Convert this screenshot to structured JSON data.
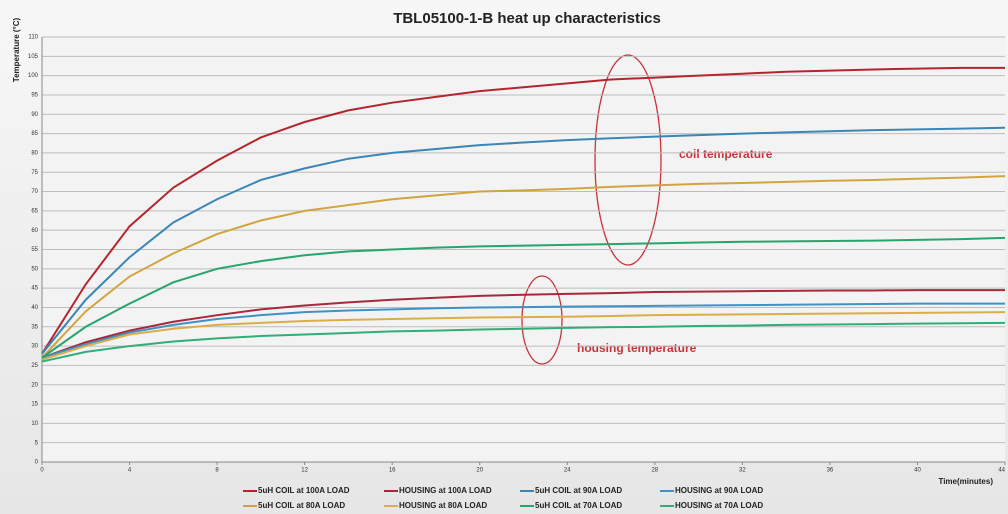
{
  "chart_data": {
    "type": "line",
    "title": "TBL05100-1-B heat up characteristics",
    "ylabel": "Temperature (°C)",
    "xlabel": "Time(minutes)",
    "annotations": [
      "coil temperature",
      "housing temperature"
    ],
    "x": [
      0,
      2,
      4,
      6,
      8,
      10,
      12,
      14,
      16,
      18,
      20,
      22,
      24,
      26,
      28,
      30,
      32,
      34,
      36,
      38,
      40,
      42,
      44
    ],
    "xlim": [
      0,
      44
    ],
    "xticks": [
      0,
      4,
      8,
      12,
      16,
      20,
      24,
      28,
      32,
      36,
      40,
      44
    ],
    "ylim": [
      0,
      110
    ],
    "yticks": [
      0,
      5,
      10,
      15,
      20,
      25,
      30,
      35,
      40,
      45,
      50,
      55,
      60,
      65,
      70,
      75,
      80,
      85,
      90,
      95,
      100,
      105,
      110
    ],
    "grid": true,
    "legend": "bottom",
    "series": [
      {
        "name": "5uH COIL at 100A LOAD",
        "color": "#b3262e",
        "values": [
          28,
          46,
          61,
          71,
          78,
          84,
          88,
          91,
          93,
          94.5,
          96,
          97,
          98,
          99,
          99.5,
          100,
          100.5,
          101,
          101.3,
          101.6,
          101.8,
          102,
          102
        ]
      },
      {
        "name": "HOUSING at 100A LOAD",
        "color": "#a8283c",
        "values": [
          27,
          31,
          34,
          36.3,
          38,
          39.5,
          40.5,
          41.3,
          42,
          42.5,
          43,
          43.3,
          43.5,
          43.7,
          44,
          44.1,
          44.2,
          44.3,
          44.4,
          44.4,
          44.5,
          44.5,
          44.5
        ]
      },
      {
        "name": "5uH COIL at 90A LOAD",
        "color": "#3a86b6",
        "values": [
          28,
          42,
          53,
          62,
          68,
          73,
          76,
          78.5,
          80,
          81,
          82,
          82.7,
          83.3,
          83.8,
          84.2,
          84.6,
          85,
          85.3,
          85.6,
          85.9,
          86.1,
          86.3,
          86.5
        ]
      },
      {
        "name": "HOUSING at 90A LOAD",
        "color": "#3f92c4",
        "values": [
          27,
          30.5,
          33.5,
          35.5,
          37,
          38,
          38.8,
          39.2,
          39.5,
          39.8,
          40,
          40.1,
          40.2,
          40.3,
          40.4,
          40.5,
          40.6,
          40.7,
          40.8,
          40.9,
          41,
          41,
          41
        ]
      },
      {
        "name": "5uH COIL at 80A LOAD",
        "color": "#d2a43e",
        "values": [
          27,
          39,
          48,
          54,
          59,
          62.5,
          65,
          66.5,
          68,
          69,
          70,
          70.3,
          70.7,
          71.2,
          71.6,
          72,
          72.2,
          72.5,
          72.8,
          73,
          73.3,
          73.6,
          74
        ]
      },
      {
        "name": "HOUSING at 80A LOAD",
        "color": "#dbae4a",
        "values": [
          26.5,
          30,
          33,
          34.5,
          35.5,
          36,
          36.5,
          36.8,
          37,
          37.2,
          37.4,
          37.5,
          37.6,
          37.8,
          38,
          38.1,
          38.2,
          38.3,
          38.4,
          38.5,
          38.6,
          38.7,
          38.8
        ]
      },
      {
        "name": "5uH COIL at 70A LOAD",
        "color": "#27a56c",
        "values": [
          27,
          35,
          41,
          46.5,
          50,
          52,
          53.5,
          54.5,
          55,
          55.5,
          55.8,
          56,
          56.2,
          56.4,
          56.6,
          56.8,
          57,
          57.1,
          57.2,
          57.3,
          57.5,
          57.7,
          58
        ]
      },
      {
        "name": "HOUSING at 70A LOAD",
        "color": "#30ad7a",
        "values": [
          26,
          28.5,
          30,
          31.2,
          32,
          32.6,
          33,
          33.4,
          33.8,
          34,
          34.3,
          34.5,
          34.7,
          34.9,
          35,
          35.2,
          35.3,
          35.5,
          35.6,
          35.7,
          35.8,
          35.9,
          36
        ]
      }
    ]
  }
}
